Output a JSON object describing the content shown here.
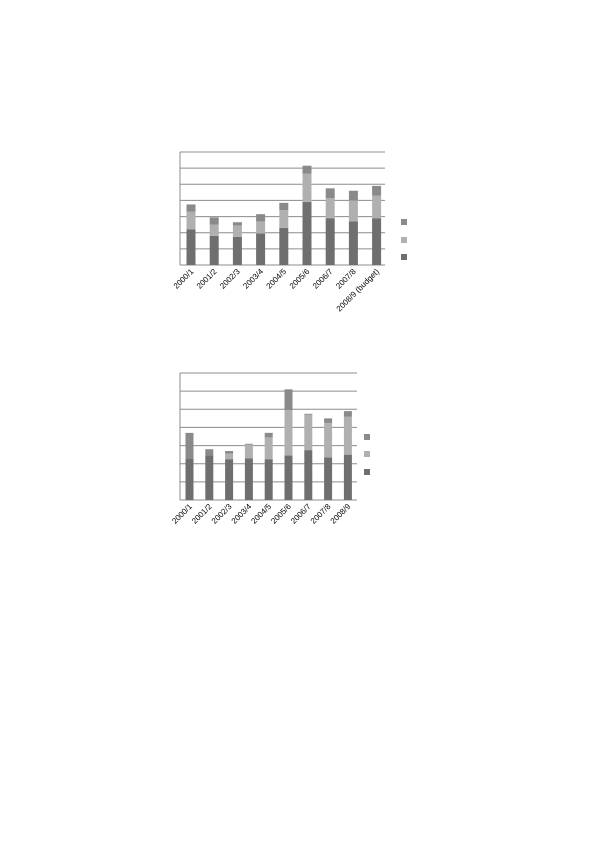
{
  "colors": {
    "bottom": "#6f6f6f",
    "middle": "#b0b0b0",
    "top": "#8a8a8a",
    "grid": "#8c8c8c"
  },
  "chart_data": [
    {
      "type": "bar",
      "stacked": true,
      "grid": true,
      "legend_position": "right",
      "categories": [
        "2000/1",
        "2001/2",
        "2002/3",
        "2003/4",
        "2004/5",
        "2005/6",
        "2006/7",
        "2007/8",
        "2008/9 (budget)"
      ],
      "ylim": [
        0,
        7
      ],
      "series": [
        {
          "values": [
            2.2,
            1.8,
            1.75,
            1.95,
            2.3,
            3.9,
            2.9,
            2.7,
            2.9
          ]
        },
        {
          "values": [
            1.1,
            0.7,
            0.7,
            0.75,
            1.1,
            1.75,
            1.25,
            1.3,
            1.4
          ]
        },
        {
          "values": [
            0.45,
            0.45,
            0.2,
            0.45,
            0.45,
            0.5,
            0.6,
            0.6,
            0.6
          ]
        }
      ]
    },
    {
      "type": "bar",
      "stacked": true,
      "grid": true,
      "legend_position": "right",
      "categories": [
        "2000/1",
        "2001/2",
        "2002/3",
        "2003/4",
        "2004/5",
        "2005/6",
        "2006/7",
        "2007/8",
        "2008/9"
      ],
      "ylim": [
        0,
        7
      ],
      "series": [
        {
          "values": [
            2.3,
            2.45,
            2.25,
            2.3,
            2.25,
            2.45,
            2.75,
            2.35,
            2.5
          ]
        },
        {
          "values": [
            0.0,
            0.0,
            0.3,
            0.75,
            1.2,
            2.5,
            1.95,
            1.9,
            2.1
          ]
        },
        {
          "values": [
            1.4,
            0.35,
            0.15,
            0.05,
            0.25,
            1.15,
            0.05,
            0.25,
            0.3
          ]
        }
      ]
    }
  ]
}
